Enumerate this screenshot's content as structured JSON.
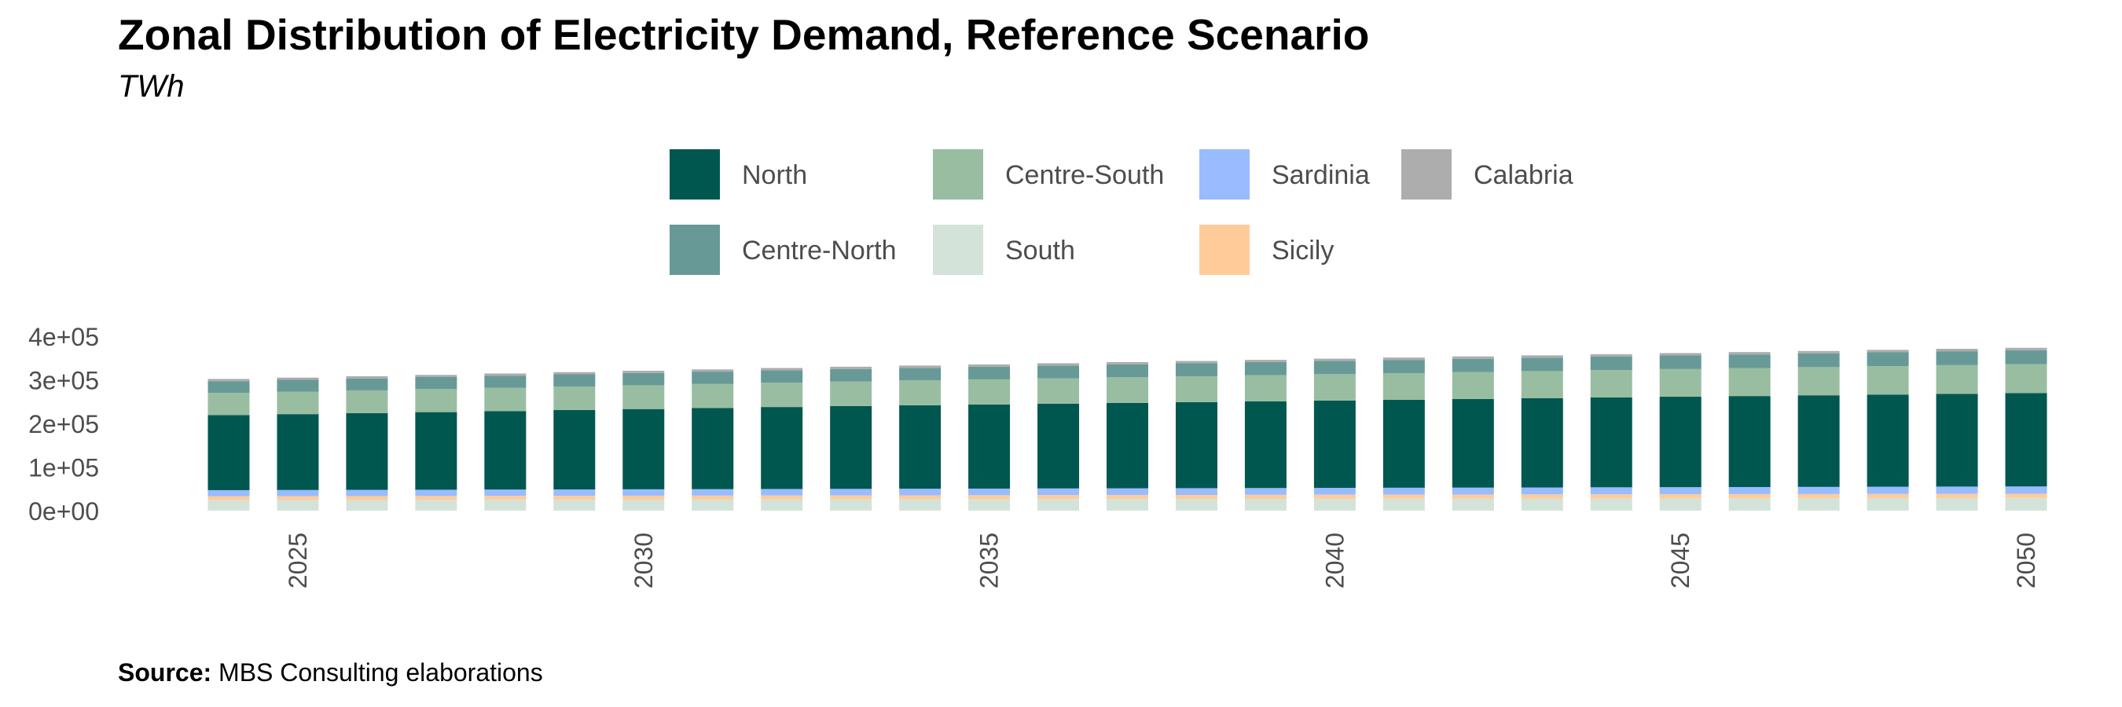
{
  "chart_data": {
    "type": "bar",
    "stacked": true,
    "title": "Zonal Distribution of Electricity Demand, Reference Scenario",
    "subtitle": "TWh",
    "source_label": "Source:",
    "source_text": "MBS Consulting elaborations",
    "xlabel": "",
    "ylabel": "",
    "ylim": [
      0,
      400000
    ],
    "y_ticks": [
      0,
      100000,
      200000,
      300000,
      400000
    ],
    "y_tick_labels": [
      "0e+00",
      "1e+05",
      "2e+05",
      "3e+05",
      "4e+05"
    ],
    "x_ticks": [
      2025,
      2030,
      2035,
      2040,
      2045,
      2050
    ],
    "x_tick_labels": [
      "2025",
      "2030",
      "2035",
      "2040",
      "2045",
      "2050"
    ],
    "grid": false,
    "legend_position": "top",
    "categories": [
      2024,
      2025,
      2026,
      2027,
      2028,
      2029,
      2030,
      2031,
      2032,
      2033,
      2034,
      2035,
      2036,
      2037,
      2038,
      2039,
      2040,
      2041,
      2042,
      2043,
      2044,
      2045,
      2046,
      2047,
      2048,
      2049,
      2050
    ],
    "series": [
      {
        "name": "Calabria",
        "color": "#ADADAD",
        "values": [
          5000,
          5000,
          5000,
          5000,
          5100,
          5100,
          5100,
          5100,
          5200,
          5200,
          5200,
          5200,
          5300,
          5300,
          5300,
          5300,
          5400,
          5400,
          5400,
          5400,
          5500,
          5500,
          5500,
          5500,
          5600,
          5600,
          5600
        ]
      },
      {
        "name": "Centre-North",
        "color": "#679A96",
        "values": [
          27000,
          27200,
          27400,
          27600,
          27800,
          28000,
          28200,
          28400,
          28500,
          28700,
          28900,
          29100,
          29300,
          29500,
          29700,
          29900,
          30100,
          30300,
          30500,
          30700,
          30900,
          31100,
          31300,
          31500,
          31700,
          31900,
          32000
        ]
      },
      {
        "name": "Centre-South",
        "color": "#99BDA1",
        "values": [
          51000,
          51600,
          52200,
          52800,
          53400,
          54000,
          54600,
          55200,
          55800,
          56400,
          57000,
          57600,
          58100,
          58700,
          59300,
          59900,
          60500,
          61100,
          61700,
          62300,
          62900,
          63500,
          64100,
          64600,
          65200,
          65800,
          66400
        ]
      },
      {
        "name": "North",
        "color": "#005750",
        "values": [
          172000,
          174000,
          176000,
          178000,
          180000,
          182000,
          184000,
          186000,
          188000,
          189800,
          191400,
          192900,
          194400,
          195900,
          197400,
          198900,
          200300,
          201800,
          203200,
          204600,
          206000,
          207400,
          208700,
          210100,
          211400,
          212700,
          214000
        ]
      },
      {
        "name": "Sardinia",
        "color": "#99BBFF",
        "values": [
          14000,
          14100,
          14200,
          14300,
          14400,
          14500,
          14600,
          14700,
          14800,
          14900,
          15000,
          15100,
          15200,
          15300,
          15400,
          15500,
          15600,
          15700,
          15800,
          15900,
          16000,
          16100,
          16200,
          16300,
          16400,
          16500,
          16600
        ]
      },
      {
        "name": "Sicily",
        "color": "#FFCC99",
        "values": [
          9000,
          9000,
          9000,
          9000,
          9100,
          9100,
          9100,
          9100,
          9200,
          9200,
          9200,
          9200,
          9300,
          9300,
          9300,
          9300,
          9400,
          9400,
          9400,
          9400,
          9500,
          9500,
          9500,
          9500,
          9600,
          9600,
          9600
        ]
      },
      {
        "name": "South",
        "color": "#D3E3D9",
        "values": [
          24000,
          24200,
          24400,
          24600,
          24800,
          25000,
          25200,
          25400,
          25600,
          25800,
          26000,
          26200,
          26400,
          26600,
          26800,
          27000,
          27200,
          27400,
          27600,
          27800,
          28000,
          28200,
          28400,
          28600,
          28800,
          29000,
          29200
        ]
      }
    ],
    "legend": [
      {
        "name": "North",
        "color": "#005750"
      },
      {
        "name": "Centre-North",
        "color": "#679A96"
      },
      {
        "name": "Centre-South",
        "color": "#99BDA1"
      },
      {
        "name": "South",
        "color": "#D3E3D9"
      },
      {
        "name": "Sardinia",
        "color": "#99BBFF"
      },
      {
        "name": "Sicily",
        "color": "#FFCC99"
      },
      {
        "name": "Calabria",
        "color": "#ADADAD"
      }
    ]
  }
}
